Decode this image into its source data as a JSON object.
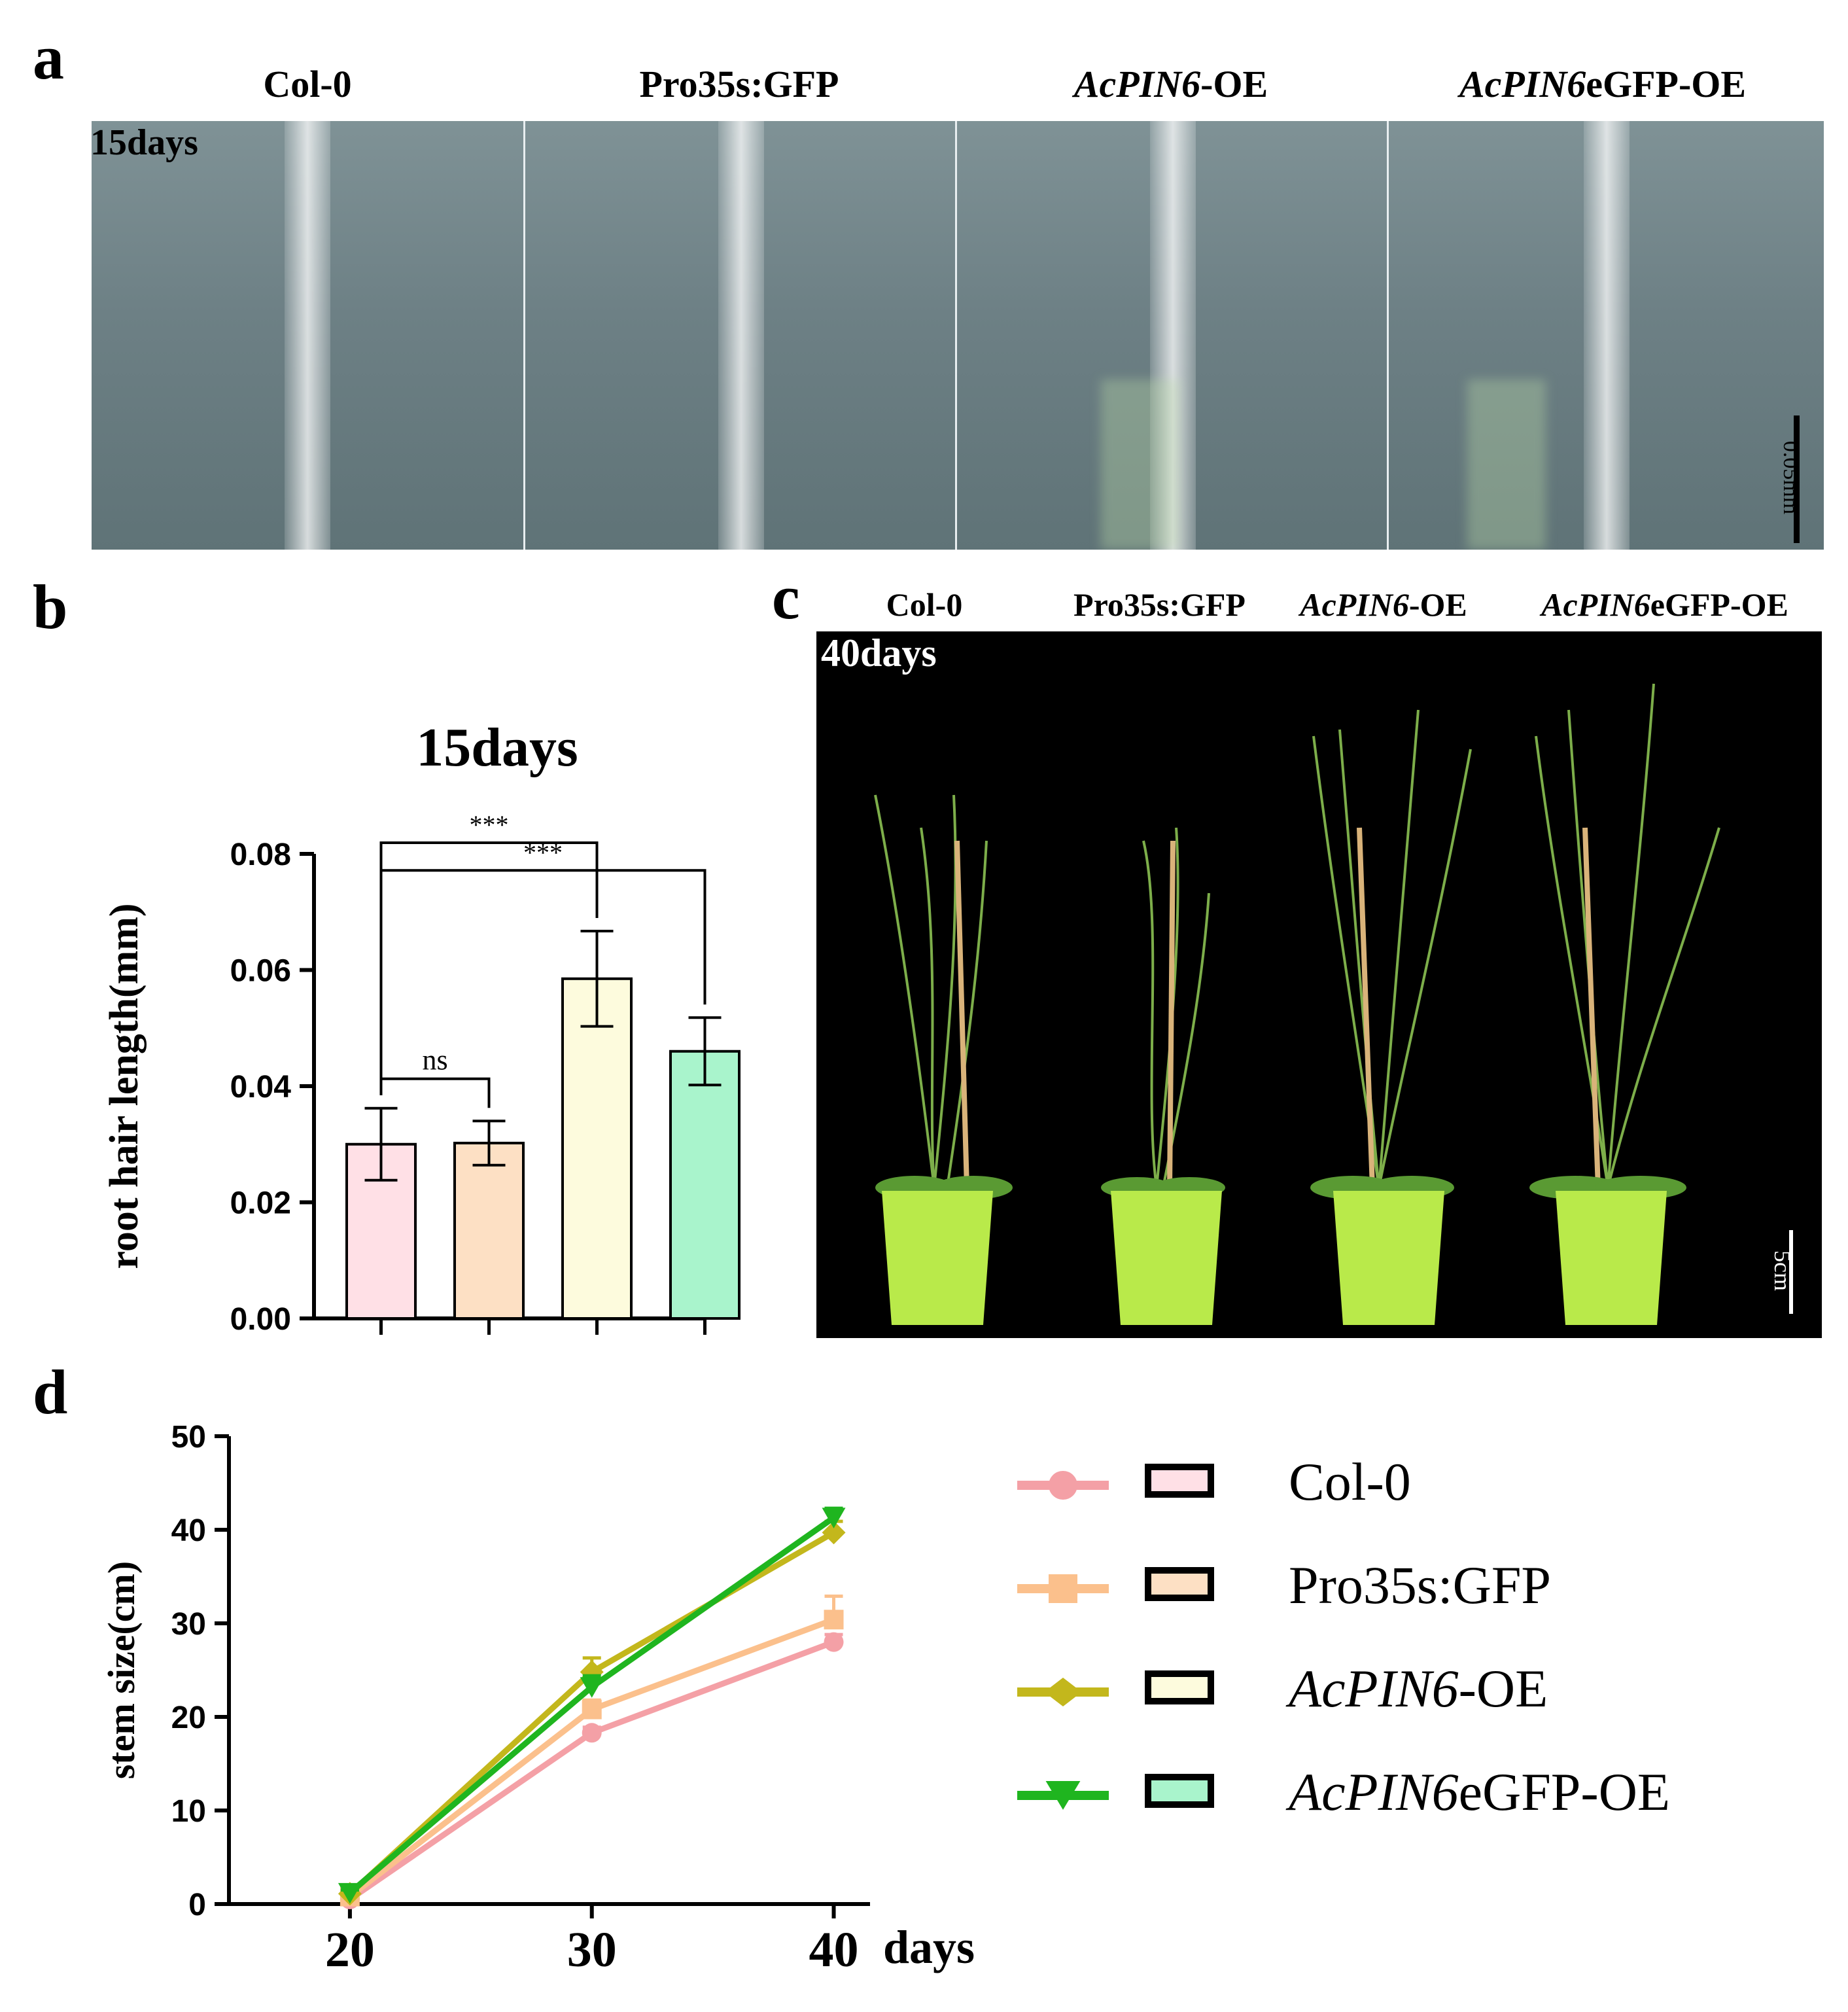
{
  "panel_a": {
    "letter": "a",
    "labels": [
      {
        "italic": "",
        "plain": "Col-0"
      },
      {
        "italic": "",
        "plain": "Pro35s:GFP"
      },
      {
        "italic": "AcPIN6",
        "plain": "-OE"
      },
      {
        "italic": "AcPIN6",
        "plain": "eGFP-OE"
      }
    ],
    "days_tag": "15days",
    "scale_bar": "0.05mm"
  },
  "panel_c": {
    "letter": "c",
    "labels": [
      {
        "italic": "",
        "plain": "Col-0"
      },
      {
        "italic": "",
        "plain": "Pro35s:GFP"
      },
      {
        "italic": "AcPIN6",
        "plain": "-OE"
      },
      {
        "italic": "AcPIN6",
        "plain": "eGFP-OE"
      }
    ],
    "days_tag": "40days",
    "scale_bar": "5cm"
  },
  "chart_data": [
    {
      "panel": "b",
      "type": "bar",
      "title": "15days",
      "ylabel": "root hair length(mm)",
      "xlabel": "",
      "ylim": [
        0,
        0.08
      ],
      "yticks": [
        "0.00",
        "0.02",
        "0.04",
        "0.06",
        "0.08"
      ],
      "categories": [
        "Col-0",
        "Pro35s:GFP",
        "AcPIN6-OE",
        "AcPIN6eGFP-OE"
      ],
      "values": [
        0.03,
        0.0302,
        0.0585,
        0.046
      ],
      "errors": [
        0.0062,
        0.0038,
        0.0082,
        0.0058
      ],
      "colors": [
        "#ffe0e6",
        "#fde0c4",
        "#fdfbdd",
        "#a9f4cc"
      ],
      "significance": [
        {
          "from": 0,
          "to": 1,
          "label": "ns"
        },
        {
          "from": 0,
          "to": 2,
          "label": "***"
        },
        {
          "from": 0,
          "to": 3,
          "label": "***"
        }
      ]
    },
    {
      "panel": "d",
      "type": "line",
      "ylabel": "stem size(cm)",
      "xlabel": "days",
      "x": [
        20,
        30,
        40
      ],
      "xticks": [
        "20",
        "30",
        "40"
      ],
      "ylim": [
        0,
        50
      ],
      "yticks": [
        "0",
        "10",
        "20",
        "30",
        "40",
        "50"
      ],
      "series": [
        {
          "name": "Col-0",
          "italic": "",
          "plain": "Col-0",
          "values": [
            0.5,
            18.3,
            28.0
          ],
          "errors": [
            0.3,
            0.6,
            0.8
          ],
          "color": "#f4a0a6",
          "box_fill": "#ffe0e6",
          "marker": "circle"
        },
        {
          "name": "Pro35s:GFP",
          "italic": "",
          "plain": "Pro35s:GFP",
          "values": [
            0.8,
            20.8,
            30.4
          ],
          "errors": [
            0.3,
            1.0,
            2.5
          ],
          "color": "#fbc08c",
          "box_fill": "#fde0c4",
          "marker": "square"
        },
        {
          "name": "AcPIN6-OE",
          "italic": "AcPIN6",
          "plain": "-OE",
          "values": [
            1.1,
            24.8,
            39.7
          ],
          "errors": [
            0.3,
            1.5,
            1.2
          ],
          "color": "#c3b71c",
          "box_fill": "#fdfbdd",
          "marker": "diamond"
        },
        {
          "name": "AcPIN6eGFP-OE",
          "italic": "AcPIN6",
          "plain": "eGFP-OE",
          "values": [
            1.2,
            23.2,
            41.3
          ],
          "errors": [
            0.3,
            1.2,
            1.0
          ],
          "color": "#1fb51f",
          "box_fill": "#a9f4cc",
          "marker": "triangle-down"
        }
      ]
    }
  ]
}
